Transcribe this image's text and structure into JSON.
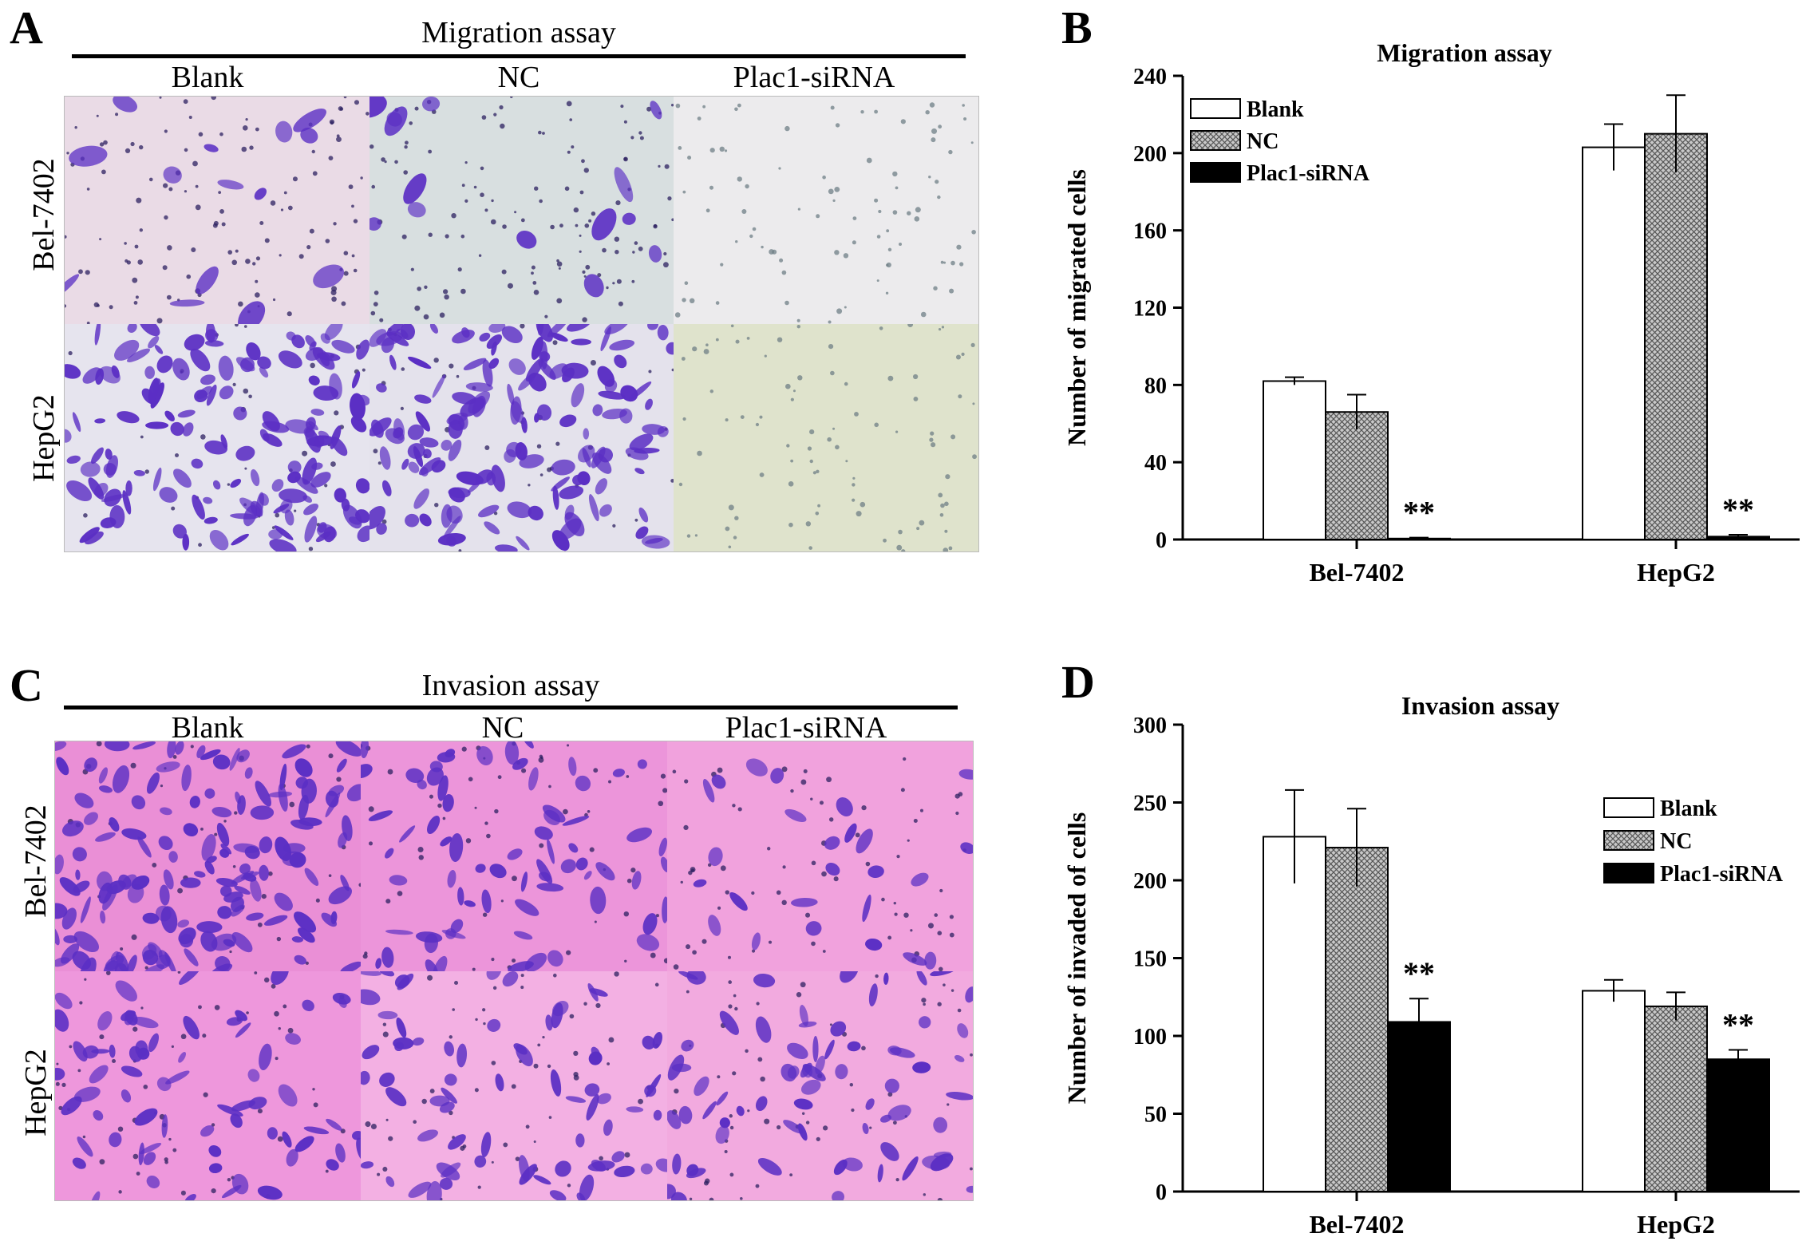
{
  "panels": {
    "A": {
      "letter": "A",
      "title": "Migration assay",
      "columns": [
        "Blank",
        "NC",
        "Plac1-siRNA"
      ],
      "rows": [
        "Bel-7402",
        "HepG2"
      ]
    },
    "B": {
      "letter": "B"
    },
    "C": {
      "letter": "C",
      "title": "Invasion assay",
      "columns": [
        "Blank",
        "NC",
        "Plac1-siRNA"
      ],
      "rows": [
        "Bel-7402",
        "HepG2"
      ]
    },
    "D": {
      "letter": "D"
    }
  },
  "micrographs": {
    "migration": [
      {
        "cells": "sparse-large",
        "bg": "#eadbe6"
      },
      {
        "cells": "sparse-large",
        "bg": "#d8dfe0"
      },
      {
        "cells": "very-sparse",
        "bg": "#ecebed"
      },
      {
        "cells": "dense",
        "bg": "#e6e4ee"
      },
      {
        "cells": "dense",
        "bg": "#e4e2ec"
      },
      {
        "cells": "very-sparse",
        "bg": "#dfe3cc"
      }
    ],
    "invasion": [
      {
        "cells": "dense",
        "bg": "#ea8fd6"
      },
      {
        "cells": "medium",
        "bg": "#ec95da"
      },
      {
        "cells": "sparse",
        "bg": "#f1a2dd"
      },
      {
        "cells": "medium",
        "bg": "#ee97dc"
      },
      {
        "cells": "medium",
        "bg": "#f3b0e3"
      },
      {
        "cells": "medium",
        "bg": "#f2aadf"
      }
    ],
    "stain_color": "#5b2fc4"
  },
  "chart_data": [
    {
      "panel": "B",
      "type": "bar",
      "title": "Migration assay",
      "xlabel": "",
      "ylabel": "Number of migrated cells",
      "categories": [
        "Bel-7402",
        "HepG2"
      ],
      "ylim": [
        0,
        240
      ],
      "yticks": [
        0,
        40,
        80,
        120,
        160,
        200,
        240
      ],
      "legend_position": "top-left",
      "series": [
        {
          "name": "Blank",
          "fill": "white",
          "values": [
            82,
            203
          ],
          "errors": [
            2,
            12
          ]
        },
        {
          "name": "NC",
          "fill": "crosshatch",
          "values": [
            66,
            210
          ],
          "errors": [
            9,
            20
          ]
        },
        {
          "name": "Plac1-siRNA",
          "fill": "black",
          "values": [
            0.5,
            1.5
          ],
          "errors": [
            0.5,
            1
          ]
        }
      ],
      "annotations": [
        {
          "text": "**",
          "category": "Bel-7402",
          "series": "Plac1-siRNA"
        },
        {
          "text": "**",
          "category": "HepG2",
          "series": "Plac1-siRNA"
        }
      ]
    },
    {
      "panel": "D",
      "type": "bar",
      "title": "Invasion assay",
      "xlabel": "",
      "ylabel": "Number of invaded of cells",
      "categories": [
        "Bel-7402",
        "HepG2"
      ],
      "ylim": [
        0,
        300
      ],
      "yticks": [
        0,
        50,
        100,
        150,
        200,
        250,
        300
      ],
      "legend_position": "right",
      "series": [
        {
          "name": "Blank",
          "fill": "white",
          "values": [
            228,
            129
          ],
          "errors": [
            30,
            7
          ]
        },
        {
          "name": "NC",
          "fill": "crosshatch",
          "values": [
            221,
            119
          ],
          "errors": [
            25,
            9
          ]
        },
        {
          "name": "Plac1-siRNA",
          "fill": "black",
          "values": [
            109,
            85
          ],
          "errors": [
            15,
            6
          ]
        }
      ],
      "annotations": [
        {
          "text": "**",
          "category": "Bel-7402",
          "series": "Plac1-siRNA"
        },
        {
          "text": "**",
          "category": "HepG2",
          "series": "Plac1-siRNA"
        }
      ]
    }
  ]
}
